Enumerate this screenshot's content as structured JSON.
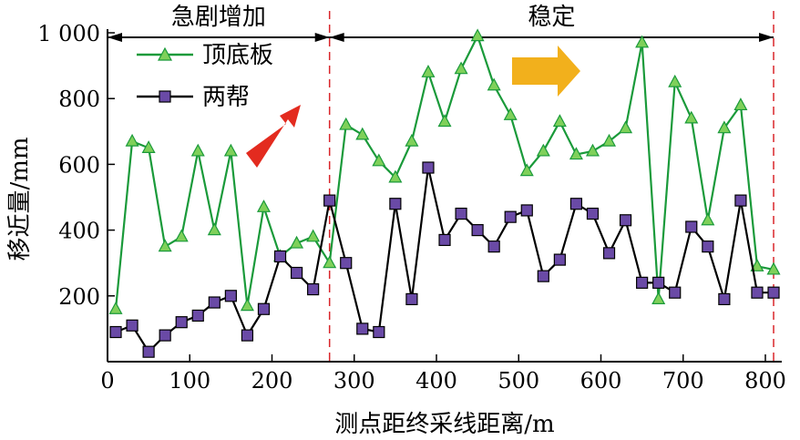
{
  "chart_data": {
    "type": "line",
    "xlabel": "测点距终采线距离/m",
    "ylabel": "移近量/mm",
    "xlim": [
      0,
      800
    ],
    "ylim": [
      0,
      1000
    ],
    "x_ticks": [
      0,
      100,
      200,
      300,
      400,
      500,
      600,
      700,
      800
    ],
    "x_tick_labels": [
      "0",
      "100",
      "200",
      "300",
      "400",
      "500",
      "600",
      "700",
      "800"
    ],
    "y_ticks": [
      200,
      400,
      600,
      800,
      1000
    ],
    "y_tick_labels": [
      "200",
      "400",
      "600",
      "800",
      "1 000"
    ],
    "grid": false,
    "legend_position": "top-left",
    "series": [
      {
        "name": "顶底板",
        "color": "#1a9a3a",
        "marker_color": "#7fd05a",
        "marker": "triangle",
        "x": [
          10,
          30,
          50,
          70,
          90,
          110,
          130,
          150,
          170,
          190,
          210,
          230,
          250,
          270,
          290,
          310,
          330,
          350,
          370,
          390,
          410,
          430,
          450,
          470,
          490,
          510,
          530,
          550,
          570,
          590,
          610,
          630,
          650,
          670,
          690,
          710,
          730,
          750,
          770,
          790,
          810
        ],
        "values": [
          160,
          670,
          650,
          350,
          380,
          640,
          400,
          640,
          170,
          470,
          320,
          360,
          380,
          300,
          720,
          690,
          610,
          560,
          670,
          880,
          730,
          890,
          990,
          840,
          750,
          580,
          640,
          730,
          630,
          640,
          670,
          710,
          970,
          190,
          850,
          740,
          430,
          710,
          780,
          290,
          280
        ]
      },
      {
        "name": "两帮",
        "color": "#000000",
        "marker_color": "#6a4aa6",
        "marker": "square",
        "x": [
          10,
          30,
          50,
          70,
          90,
          110,
          130,
          150,
          170,
          190,
          210,
          230,
          250,
          270,
          290,
          310,
          330,
          350,
          370,
          390,
          410,
          430,
          450,
          470,
          490,
          510,
          530,
          550,
          570,
          590,
          610,
          630,
          650,
          670,
          690,
          710,
          730,
          750,
          770,
          790,
          810
        ],
        "values": [
          90,
          110,
          30,
          80,
          120,
          140,
          180,
          200,
          80,
          160,
          320,
          270,
          220,
          490,
          300,
          100,
          90,
          480,
          190,
          590,
          370,
          450,
          400,
          350,
          440,
          460,
          260,
          310,
          480,
          450,
          330,
          430,
          240,
          240,
          210,
          410,
          350,
          190,
          490,
          210,
          210
        ]
      }
    ],
    "annotations": {
      "phase_rapid": {
        "label": "急剧增加",
        "x_start": 0,
        "x_end": 270
      },
      "phase_stable": {
        "label": "稳定",
        "x_start": 270,
        "x_end": 810
      },
      "divider_lines_x": [
        270,
        810
      ],
      "divider_color": "#d9262b",
      "rapid_arrow_color": "#e32b1f",
      "stable_arrow_color": "#f2b01c"
    }
  }
}
